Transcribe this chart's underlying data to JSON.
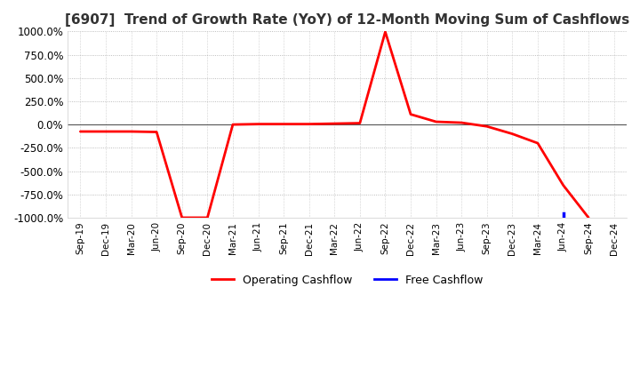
{
  "title": "[6907]  Trend of Growth Rate (YoY) of 12-Month Moving Sum of Cashflows",
  "title_fontsize": 11,
  "title_color": "#333333",
  "background_color": "#ffffff",
  "plot_bg_color": "#ffffff",
  "grid_color": "#aaaaaa",
  "zero_line_color": "#555555",
  "ylim": [
    -1000,
    1000
  ],
  "yticks": [
    -1000,
    -750,
    -500,
    -250,
    0,
    250,
    500,
    750,
    1000
  ],
  "legend_entries": [
    "Operating Cashflow",
    "Free Cashflow"
  ],
  "legend_colors": [
    "#ff0000",
    "#0000ff"
  ],
  "x_labels": [
    "Sep-19",
    "Dec-19",
    "Mar-20",
    "Jun-20",
    "Sep-20",
    "Dec-20",
    "Mar-21",
    "Jun-21",
    "Sep-21",
    "Dec-21",
    "Mar-22",
    "Jun-22",
    "Sep-22",
    "Dec-22",
    "Mar-23",
    "Jun-23",
    "Sep-23",
    "Dec-23",
    "Mar-24",
    "Jun-24",
    "Sep-24",
    "Dec-24"
  ],
  "operating_cashflow": [
    -75,
    -75,
    -75,
    -80,
    -1000,
    -1000,
    0,
    5,
    5,
    5,
    10,
    15,
    995,
    110,
    30,
    20,
    -20,
    -100,
    -200,
    -650,
    -1000,
    null
  ],
  "free_cashflow": [
    null,
    null,
    null,
    null,
    null,
    null,
    null,
    null,
    null,
    null,
    null,
    null,
    null,
    null,
    null,
    null,
    null,
    null,
    null,
    -950,
    null,
    null
  ]
}
